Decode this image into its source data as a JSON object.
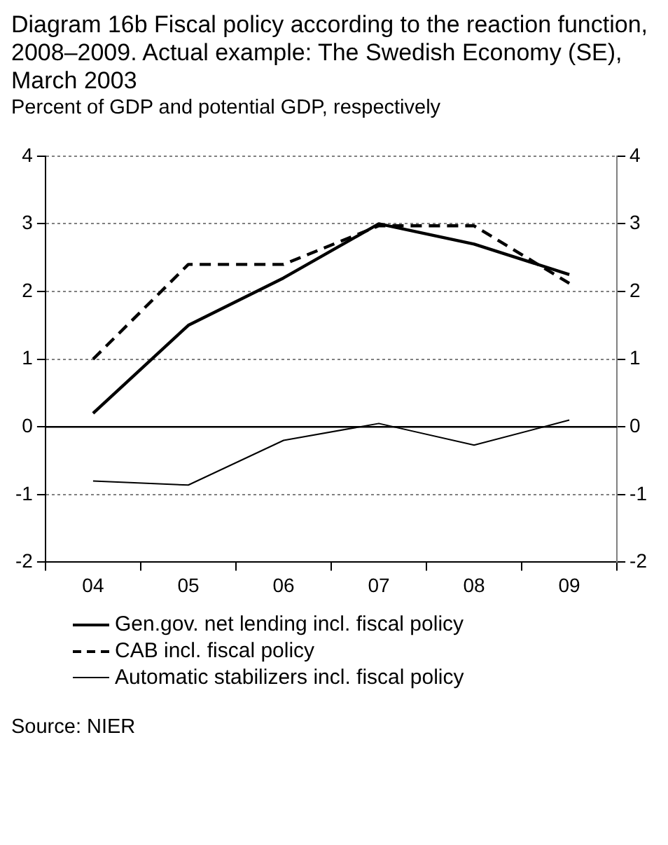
{
  "chart_data": {
    "type": "line",
    "title": "Diagram 16b Fiscal policy according to the reaction function, 2008–2009. Actual example: The Swedish Economy (SE), March 2003",
    "subtitle": "Percent of GDP and potential GDP, respectively",
    "categories": [
      "04",
      "05",
      "06",
      "07",
      "08",
      "09"
    ],
    "series": [
      {
        "name": "Gen.gov. net lending incl. fiscal policy",
        "color": "#000000",
        "line_style": "solid",
        "values": [
          0.2,
          1.5,
          2.2,
          3.0,
          2.7,
          2.25
        ]
      },
      {
        "name": "CAB incl. fiscal policy",
        "color": "#000000",
        "line_style": "dashed",
        "values": [
          1.0,
          2.4,
          2.4,
          2.97,
          2.97,
          2.12
        ]
      },
      {
        "name": "Automatic stabilizers incl. fiscal policy",
        "color": "#000000",
        "line_style": "solid",
        "values": [
          -0.8,
          -0.86,
          -0.2,
          0.05,
          -0.27,
          0.1
        ]
      }
    ],
    "ylim": [
      -2,
      4
    ],
    "yticks": [
      -2,
      -1,
      0,
      1,
      2,
      3,
      4
    ],
    "y2lim": [
      -2,
      4
    ],
    "y2ticks": [
      -2,
      -1,
      0,
      1,
      2,
      3,
      4
    ],
    "grid": "y",
    "legend": "bottom",
    "marker": "none",
    "ref_lines": [
      {
        "axis": "y",
        "value": 0,
        "color": "#000000",
        "line_style": "solid"
      }
    ],
    "annotations": [
      "Source: NIER"
    ]
  }
}
